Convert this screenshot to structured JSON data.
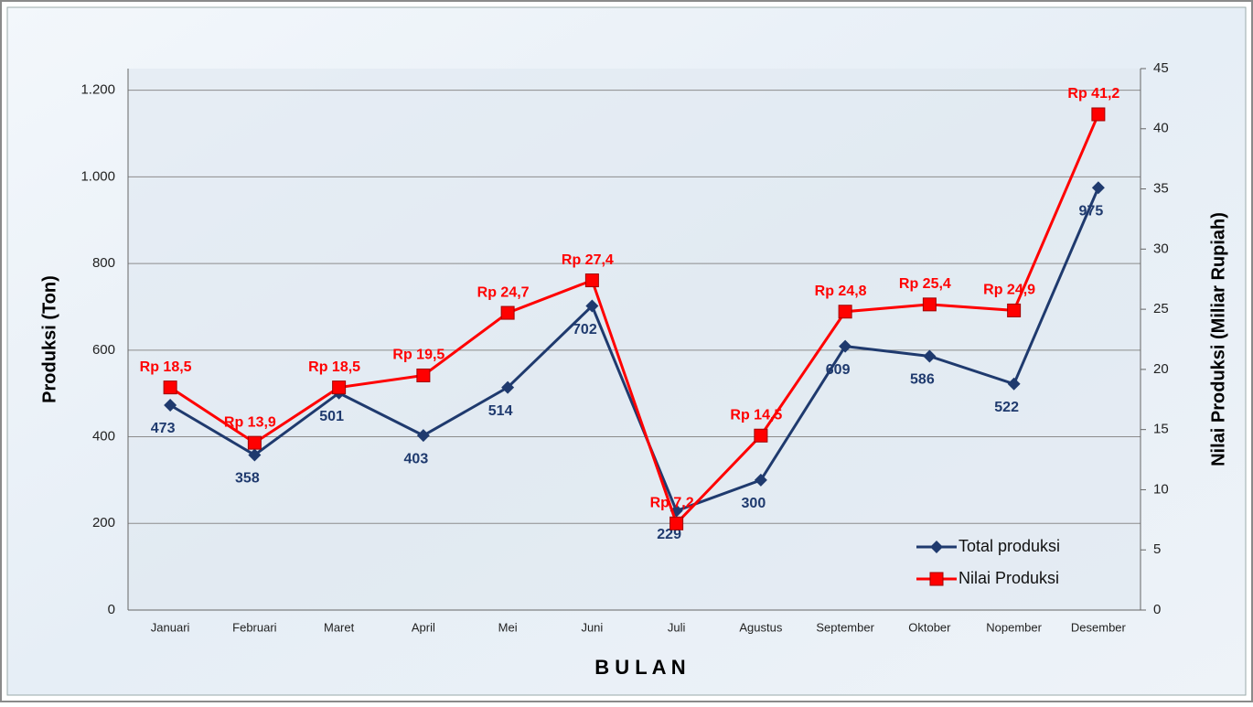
{
  "chart_data": {
    "type": "line",
    "categories": [
      "Januari",
      "Februari",
      "Maret",
      "April",
      "Mei",
      "Juni",
      "Juli",
      "Agustus",
      "September",
      "Oktober",
      "Nopember",
      "Desember"
    ],
    "series": [
      {
        "name": "Total produksi",
        "color": "#1f3a6e",
        "values": [
          473,
          358,
          501,
          403,
          514,
          702,
          229,
          300,
          609,
          586,
          522,
          975
        ]
      },
      {
        "name": "Nilai Produksi",
        "color": "#ff0000",
        "axis": "y2",
        "values": [
          18.5,
          13.9,
          18.5,
          19.5,
          24.7,
          27.4,
          7.2,
          14.5,
          24.8,
          25.4,
          24.9,
          41.2
        ],
        "value_labels": [
          "Rp 18,5",
          "Rp 13,9",
          "Rp 18,5",
          "Rp 19,5",
          "Rp 24,7",
          "Rp 27,4",
          "Rp 7,2",
          "Rp 14,5",
          "Rp 24,8",
          "Rp 25,4",
          "Rp 24,9",
          "Rp 41,2"
        ]
      }
    ],
    "xlabel": "B U L A N",
    "ylabel": "Produksi (Ton)",
    "y2label": "Nilai Produksi  (Miliar  Rupiah)",
    "ylim": [
      0,
      1250
    ],
    "yticks": [
      0,
      200,
      400,
      600,
      800,
      {
        "value": 1000,
        "label": "1.000"
      },
      {
        "value": 1200,
        "label": "1.200"
      }
    ],
    "y2lim": [
      0,
      45
    ],
    "y2ticks": [
      0,
      5,
      10,
      15,
      20,
      25,
      30,
      35,
      40,
      45
    ],
    "grid": true,
    "legend": "lower right"
  }
}
